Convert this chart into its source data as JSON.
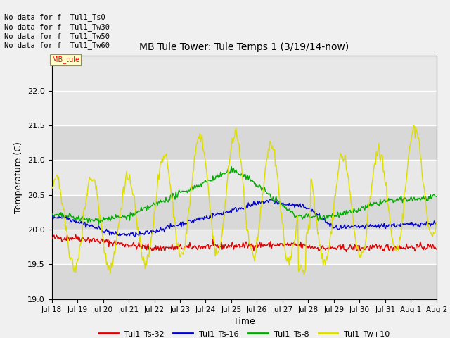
{
  "title": "MB Tule Tower: Tule Temps 1 (3/19/14-now)",
  "xlabel": "Time",
  "ylabel": "Temperature (C)",
  "ylim": [
    19.0,
    22.5
  ],
  "yticks": [
    19.0,
    19.5,
    20.0,
    20.5,
    21.0,
    21.5,
    22.0
  ],
  "bg_color": "#f0f0f0",
  "plot_bg_color": "#e8e8e8",
  "legend_labels": [
    "Tul1_Ts-32",
    "Tul1_Ts-16",
    "Tul1_Ts-8",
    "Tul1_Tw+10"
  ],
  "legend_colors": [
    "#dd0000",
    "#0000cc",
    "#00aa00",
    "#dddd00"
  ],
  "no_data_lines": [
    "No data for f  Tul1_Ts0",
    "No data for f  Tul1_Tw30",
    "No data for f  Tul1_Tw50",
    "No data for f  Tul1_Tw60"
  ],
  "x_tick_labels": [
    "Jul 18",
    "Jul 19",
    "Jul 20",
    "Jul 21",
    "Jul 22",
    "Jul 23",
    "Jul 24",
    "Jul 25",
    "Jul 26",
    "Jul 27",
    "Jul 28",
    "Jul 29",
    "Jul 30",
    "Jul 31",
    "Aug 1",
    "Aug 2"
  ],
  "n_points": 500,
  "seed": 42,
  "tooltip_text": "MB_tule"
}
